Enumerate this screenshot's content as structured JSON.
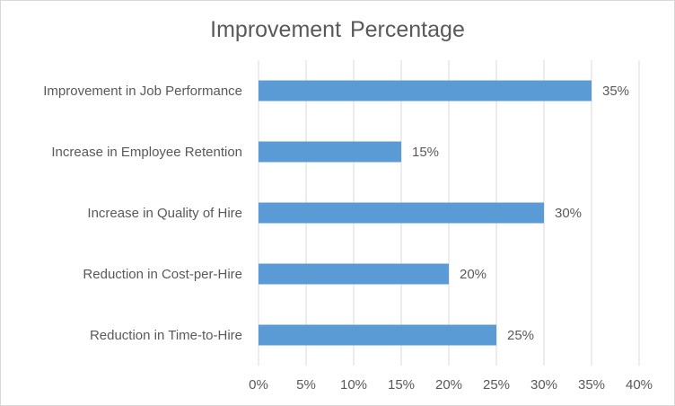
{
  "chart_data": {
    "type": "bar",
    "orientation": "horizontal",
    "title": "Improvement Percentage",
    "categories": [
      "Improvement in Job Performance",
      "Increase in Employee Retention",
      "Increase in Quality of Hire",
      "Reduction in Cost-per-Hire",
      "Reduction in Time-to-Hire"
    ],
    "values": [
      0.35,
      0.15,
      0.3,
      0.2,
      0.25
    ],
    "data_labels": [
      "35%",
      "15%",
      "30%",
      "20%",
      "25%"
    ],
    "xlim": [
      0,
      0.4
    ],
    "x_ticks": [
      0,
      0.05,
      0.1,
      0.15,
      0.2,
      0.25,
      0.3,
      0.35,
      0.4
    ],
    "x_tick_labels": [
      "0%",
      "5%",
      "10%",
      "15%",
      "20%",
      "25%",
      "30%",
      "35%",
      "40%"
    ],
    "xlabel": "",
    "ylabel": "",
    "grid": "vertical",
    "legend": "none",
    "colors": {
      "bar": "#5b9bd5",
      "grid": "#d9d9d9",
      "text": "#595959"
    }
  }
}
